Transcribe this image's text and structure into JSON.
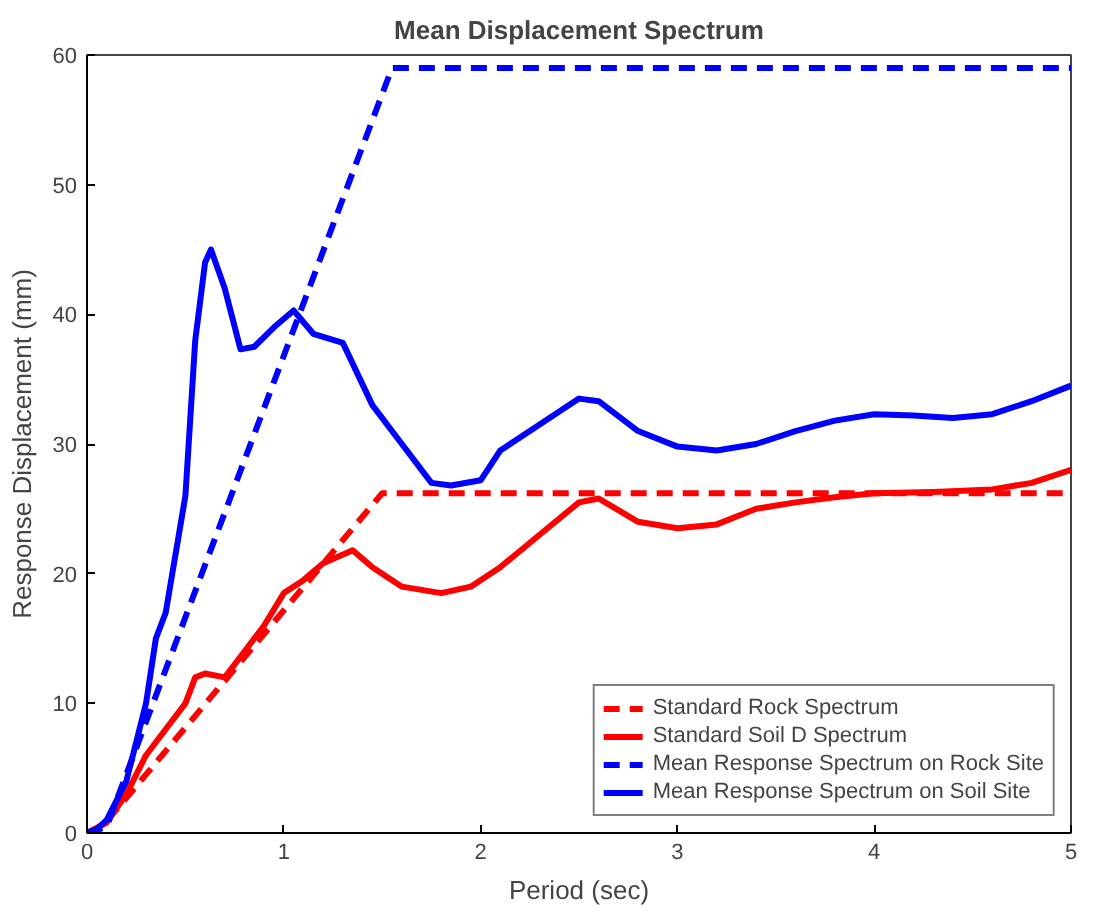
{
  "chart_data": {
    "type": "line",
    "title": "Mean Displacement Spectrum",
    "xlabel": "Period (sec)",
    "ylabel": "Response Displacement (mm)",
    "xlim": [
      0,
      5
    ],
    "ylim": [
      0,
      60
    ],
    "xticks": [
      0,
      1,
      2,
      3,
      4,
      5
    ],
    "yticks": [
      0,
      10,
      20,
      30,
      40,
      50,
      60
    ],
    "grid": false,
    "legend": "bottom right",
    "series": [
      {
        "name": "Standard Rock Spectrum",
        "color": "#ff0000",
        "line_style": "dashed",
        "x": [
          0,
          0.05,
          1.5,
          5
        ],
        "values": [
          0,
          0,
          26.2,
          26.2
        ]
      },
      {
        "name": "Standard Soil D Spectrum",
        "color": "#ff0000",
        "line_style": "solid",
        "x": [
          0,
          0.1,
          0.2,
          0.3,
          0.4,
          0.5,
          0.55,
          0.6,
          0.7,
          0.8,
          0.9,
          1.0,
          1.1,
          1.2,
          1.35,
          1.45,
          1.6,
          1.8,
          1.95,
          2.1,
          2.3,
          2.5,
          2.6,
          2.8,
          3.0,
          3.2,
          3.4,
          3.6,
          3.8,
          4.0,
          4.3,
          4.6,
          4.8,
          5.0
        ],
        "values": [
          0,
          0.8,
          3,
          6,
          8,
          10,
          12,
          12.3,
          12,
          14,
          16,
          18.5,
          19.5,
          20.8,
          21.8,
          20.5,
          19,
          18.5,
          19,
          20.5,
          23,
          25.5,
          25.8,
          24,
          23.5,
          23.8,
          25,
          25.5,
          25.9,
          26.2,
          26.3,
          26.5,
          27,
          28
        ]
      },
      {
        "name": "Mean Response Spectrum on Rock Site",
        "color": "#0000ff",
        "line_style": "dashed",
        "x": [
          0,
          0.1,
          1.55,
          5
        ],
        "values": [
          0,
          0.5,
          59,
          59
        ]
      },
      {
        "name": "Mean Response Spectrum on Soil Site",
        "color": "#0000ff",
        "line_style": "solid",
        "x": [
          0,
          0.05,
          0.1,
          0.2,
          0.3,
          0.35,
          0.4,
          0.5,
          0.55,
          0.6,
          0.63,
          0.7,
          0.78,
          0.85,
          0.95,
          1.05,
          1.15,
          1.3,
          1.45,
          1.6,
          1.75,
          1.85,
          2.0,
          2.1,
          2.25,
          2.4,
          2.5,
          2.6,
          2.8,
          3.0,
          3.2,
          3.4,
          3.6,
          3.8,
          4.0,
          4.2,
          4.4,
          4.6,
          4.8,
          5.0
        ],
        "values": [
          0,
          0.3,
          1,
          4,
          10,
          15,
          17,
          26,
          38,
          44,
          45,
          42,
          37.3,
          37.5,
          39,
          40.3,
          38.5,
          37.8,
          33,
          30,
          27,
          26.8,
          27.2,
          29.5,
          31,
          32.5,
          33.5,
          33.3,
          31,
          29.8,
          29.5,
          30,
          31,
          31.8,
          32.3,
          32.2,
          32,
          32.3,
          33.3,
          34.5
        ]
      }
    ]
  }
}
